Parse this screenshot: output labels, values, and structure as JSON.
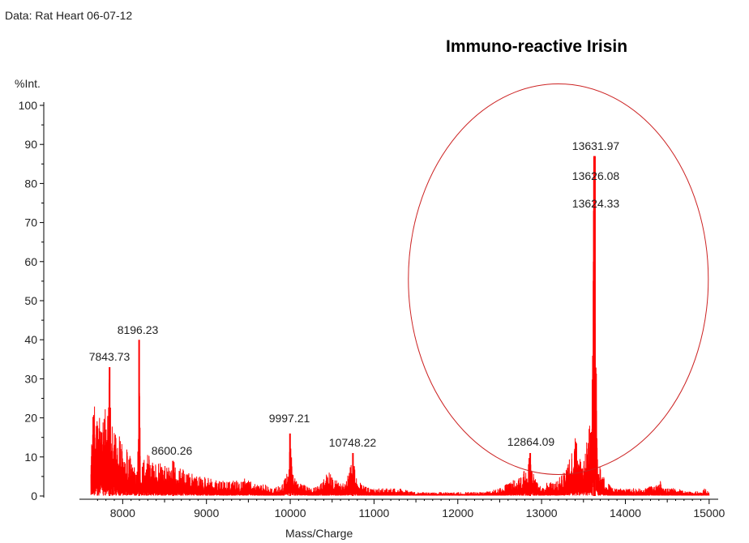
{
  "chart_data": {
    "type": "line",
    "data_label": "Data: Rat Heart 06-07-12",
    "title": "Immuno-reactive Irisin",
    "xlabel": "Mass/Charge",
    "ylabel": "%Int.",
    "xlim": [
      7600,
      15050
    ],
    "ylim": [
      0,
      100
    ],
    "x_ticks": [
      8000,
      9000,
      10000,
      11000,
      12000,
      13000,
      14000,
      15000
    ],
    "y_ticks": [
      0,
      10,
      20,
      30,
      40,
      50,
      60,
      70,
      80,
      90,
      100
    ],
    "series_color": "#ff0000",
    "spectrum": [
      [
        7620,
        15
      ],
      [
        7660,
        24
      ],
      [
        7700,
        20
      ],
      [
        7740,
        27
      ],
      [
        7780,
        22
      ],
      [
        7820,
        28
      ],
      [
        7843.73,
        33
      ],
      [
        7870,
        24
      ],
      [
        7920,
        18
      ],
      [
        7980,
        14
      ],
      [
        8050,
        12
      ],
      [
        8120,
        9
      ],
      [
        8170,
        5
      ],
      [
        8196.23,
        40
      ],
      [
        8215,
        6
      ],
      [
        8260,
        10
      ],
      [
        8320,
        11
      ],
      [
        8400,
        9
      ],
      [
        8500,
        8
      ],
      [
        8600.26,
        9
      ],
      [
        8700,
        7
      ],
      [
        8800,
        6
      ],
      [
        8900,
        5
      ],
      [
        9000,
        5
      ],
      [
        9100,
        4
      ],
      [
        9200,
        4
      ],
      [
        9300,
        4
      ],
      [
        9400,
        4
      ],
      [
        9500,
        5
      ],
      [
        9600,
        3
      ],
      [
        9700,
        3
      ],
      [
        9800,
        2
      ],
      [
        9900,
        3
      ],
      [
        9960,
        6
      ],
      [
        9997.21,
        16
      ],
      [
        10030,
        8
      ],
      [
        10080,
        4
      ],
      [
        10150,
        3
      ],
      [
        10250,
        2
      ],
      [
        10350,
        3
      ],
      [
        10420,
        5
      ],
      [
        10460,
        8
      ],
      [
        10500,
        5
      ],
      [
        10560,
        4
      ],
      [
        10620,
        3
      ],
      [
        10680,
        5
      ],
      [
        10720,
        9
      ],
      [
        10748.22,
        11
      ],
      [
        10780,
        6
      ],
      [
        10850,
        3
      ],
      [
        10950,
        2
      ],
      [
        11100,
        2
      ],
      [
        11300,
        2
      ],
      [
        11500,
        1
      ],
      [
        11700,
        1
      ],
      [
        11900,
        1
      ],
      [
        12100,
        1
      ],
      [
        12300,
        1
      ],
      [
        12500,
        2
      ],
      [
        12650,
        4
      ],
      [
        12760,
        5
      ],
      [
        12820,
        8
      ],
      [
        12864.09,
        11
      ],
      [
        12900,
        6
      ],
      [
        12960,
        3
      ],
      [
        13020,
        2
      ],
      [
        13080,
        4
      ],
      [
        13150,
        3
      ],
      [
        13250,
        6
      ],
      [
        13330,
        10
      ],
      [
        13380,
        13
      ],
      [
        13410,
        17
      ],
      [
        13440,
        10
      ],
      [
        13480,
        9
      ],
      [
        13520,
        12
      ],
      [
        13560,
        16
      ],
      [
        13600,
        30
      ],
      [
        13624.33,
        73
      ],
      [
        13626.08,
        81
      ],
      [
        13631.97,
        87
      ],
      [
        13650,
        50
      ],
      [
        13670,
        12
      ],
      [
        13700,
        7
      ],
      [
        13760,
        4
      ],
      [
        13850,
        2
      ],
      [
        14000,
        2
      ],
      [
        14200,
        2
      ],
      [
        14380,
        3
      ],
      [
        14420,
        4
      ],
      [
        14460,
        2
      ],
      [
        14600,
        2
      ],
      [
        14800,
        1
      ],
      [
        14950,
        2
      ],
      [
        15000,
        1
      ]
    ],
    "peaks": [
      {
        "mz": 7843.73,
        "label": "7843.73",
        "intensity": 33
      },
      {
        "mz": 8196.23,
        "label": "8196.23",
        "intensity": 40
      },
      {
        "mz": 8600.26,
        "label": "8600.26",
        "intensity": 9
      },
      {
        "mz": 9997.21,
        "label": "9997.21",
        "intensity": 16
      },
      {
        "mz": 10748.22,
        "label": "10748.22",
        "intensity": 11
      },
      {
        "mz": 12864.09,
        "label": "12864.09",
        "intensity": 11
      },
      {
        "mz": 13631.97,
        "label": "13631.97",
        "intensity": 87
      },
      {
        "mz": 13626.08,
        "label": "13626.08",
        "intensity": 81
      },
      {
        "mz": 13624.33,
        "label": "13624.33",
        "intensity": 73
      }
    ],
    "annotation": {
      "shape": "ellipse",
      "color": "#cc2222",
      "mz_center": 13200,
      "mz_half_width": 1790,
      "int_center": 55.5,
      "int_half_height": 50
    }
  }
}
